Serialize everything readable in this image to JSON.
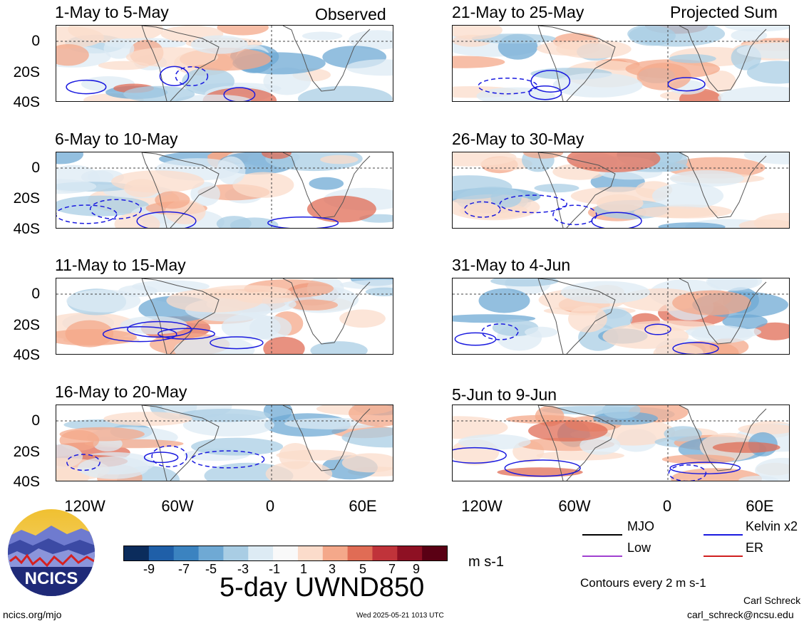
{
  "header": {
    "observed_label": "Observed",
    "projected_label": "Projected Sum"
  },
  "panels": [
    {
      "title": "1-May to 5-May",
      "group": "observed"
    },
    {
      "title": "6-May to 10-May",
      "group": "observed"
    },
    {
      "title": "11-May to 15-May",
      "group": "observed"
    },
    {
      "title": "16-May to 20-May",
      "group": "observed"
    },
    {
      "title": "21-May to 25-May",
      "group": "projected"
    },
    {
      "title": "26-May to 30-May",
      "group": "projected"
    },
    {
      "title": "31-May to 4-Jun",
      "group": "projected"
    },
    {
      "title": "5-Jun to 9-Jun",
      "group": "projected"
    }
  ],
  "y_axis": [
    "0",
    "20S",
    "40S"
  ],
  "x_axis": [
    "120W",
    "60W",
    "0",
    "60E"
  ],
  "legend": {
    "mjo": "MJO",
    "kelvin": "Kelvin x2",
    "low": "Low",
    "er": "ER",
    "contours_note": "Contours every 2 m s-1",
    "colors": {
      "mjo": "#000000",
      "kelvin": "#1a1adf",
      "low": "#a040d0",
      "er": "#d02020"
    }
  },
  "colorbar": {
    "ticks": [
      "-9",
      "-7",
      "-5",
      "-3",
      "-1",
      "1",
      "3",
      "5",
      "7",
      "9"
    ],
    "colors": [
      "#0b2c5c",
      "#1f5fa8",
      "#3b83c0",
      "#6fa9d4",
      "#a9cde4",
      "#ddebf4",
      "#f9f9f9",
      "#fbdccb",
      "#f4a88a",
      "#e06c55",
      "#c0333a",
      "#8e1023",
      "#5a0014"
    ],
    "units": "m s-1",
    "title": "5-day UWND850"
  },
  "footer": {
    "logo_text": "NCICS",
    "url": "ncics.org/mjo",
    "timestamp": "Wed 2025-05-21 1013 UTC",
    "author": "Carl Schreck",
    "email": "carl_schreck@ncsu.edu"
  }
}
